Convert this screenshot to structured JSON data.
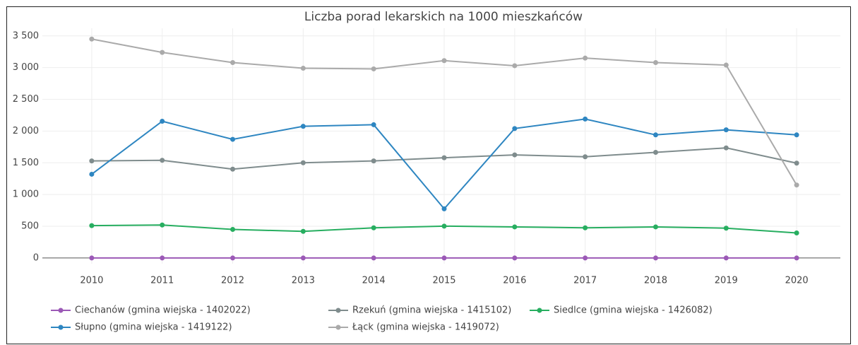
{
  "chart_data": {
    "type": "line",
    "title": "Liczba porad lekarskich na 1000 mieszkańców",
    "x": [
      2010,
      2011,
      2012,
      2013,
      2014,
      2015,
      2016,
      2017,
      2018,
      2019,
      2020
    ],
    "xlim": [
      2009.3,
      2020.62
    ],
    "xticks": [
      2010,
      2011,
      2012,
      2013,
      2014,
      2015,
      2016,
      2017,
      2018,
      2019,
      2020
    ],
    "ylim": [
      -90,
      3620
    ],
    "yticks": [
      0,
      500,
      {
        "value": 1000,
        "label": "1 000"
      },
      {
        "value": 1500,
        "label": "1 500"
      },
      {
        "value": 2000,
        "label": "2 000"
      },
      {
        "value": 2500,
        "label": "2 500"
      },
      {
        "value": 3000,
        "label": "3 000"
      },
      {
        "value": 3500,
        "label": "3 500"
      }
    ],
    "grid": true,
    "series": [
      {
        "name": "Ciechanów (gmina wiejska - 1402022)",
        "color": "#9b59b6",
        "values": [
          0,
          0,
          0,
          0,
          0,
          0,
          0,
          0,
          0,
          0,
          0
        ]
      },
      {
        "name": "Rzekuń (gmina wiejska - 1415102)",
        "color": "#7f8c8d",
        "values": [
          1530,
          1540,
          1400,
          1500,
          1530,
          1580,
          1625,
          1595,
          1665,
          1735,
          1495
        ]
      },
      {
        "name": "Siedlce (gmina wiejska - 1426082)",
        "color": "#27ae60",
        "values": [
          510,
          520,
          450,
          420,
          475,
          502,
          490,
          475,
          490,
          470,
          395
        ]
      },
      {
        "name": "Słupno (gmina wiejska - 1419122)",
        "color": "#2e86c1",
        "values": [
          1320,
          2155,
          1870,
          2075,
          2100,
          775,
          2040,
          2190,
          1940,
          2020,
          1940
        ]
      },
      {
        "name": "Łąck (gmina wiejska - 1419072)",
        "color": "#aaaaaa",
        "values": [
          3450,
          3240,
          3080,
          2990,
          2980,
          3110,
          3030,
          3150,
          3080,
          3040,
          1150
        ]
      }
    ]
  }
}
